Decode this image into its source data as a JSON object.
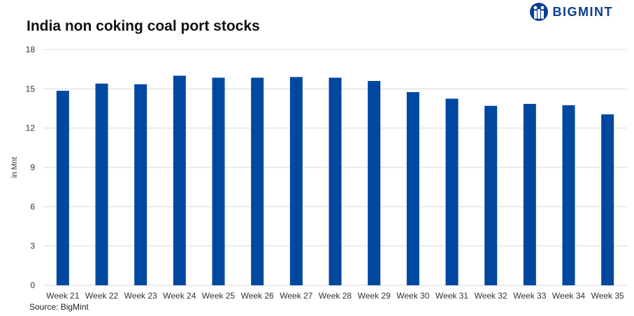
{
  "header": {
    "title": "India non coking coal port stocks",
    "logo_text": "BIGMINT"
  },
  "footer": {
    "source": "Source: BigMint"
  },
  "colors": {
    "bar": "#0047a0",
    "grid": "#d9d9d9",
    "brand": "#0b3d91"
  },
  "chart_data": {
    "type": "bar",
    "title": "India non coking coal port stocks",
    "xlabel": "",
    "ylabel": "in Mnt",
    "categories": [
      "Week 21",
      "Week 22",
      "Week 23",
      "Week 24",
      "Week 25",
      "Week 26",
      "Week 27",
      "Week 28",
      "Week 29",
      "Week 30",
      "Week 31",
      "Week 32",
      "Week 33",
      "Week 34",
      "Week 35"
    ],
    "values": [
      14.85,
      15.4,
      15.35,
      16.0,
      15.85,
      15.85,
      15.9,
      15.85,
      15.6,
      14.75,
      14.25,
      13.7,
      13.85,
      13.75,
      13.05
    ],
    "ylim": [
      0,
      18
    ],
    "yticks": [
      "0",
      "3",
      "6",
      "9",
      "12",
      "15",
      "18"
    ],
    "grid": true,
    "legend": "none"
  }
}
